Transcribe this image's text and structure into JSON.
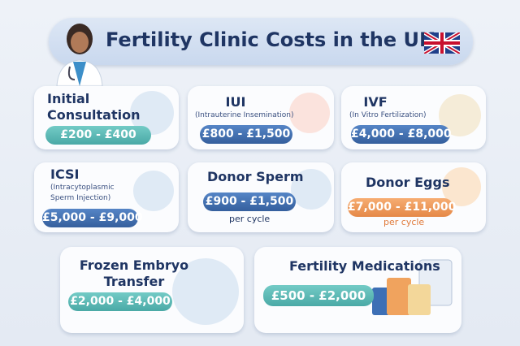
{
  "header": {
    "title": "Fertility Clinic Costs in the UK"
  },
  "cards": [
    {
      "title": "Initial Consultation",
      "price": "£200 - £400"
    },
    {
      "title": "IUI",
      "subtitle": "(Intrauterine Insemination)",
      "price": "£800 - £1,500"
    },
    {
      "title": "IVF",
      "subtitle": "(In Vitro Fertilization)",
      "price": "£4,000 - £8,000"
    },
    {
      "title": "ICSI",
      "subtitle": "(Intracytoplasmic Sperm Injection)",
      "price": "£5,000 - £9,000"
    },
    {
      "title": "Donor Sperm",
      "price": "£900 - £1,500",
      "note": "per cycle"
    },
    {
      "title": "Donor Eggs",
      "price": "£7,000 - £11,000",
      "note": "per cycle"
    },
    {
      "title": "Frozen Embryo Transfer",
      "price": "£2,000 - £4,000"
    },
    {
      "title": "Fertility Medications",
      "price": "£500 - £2,000"
    }
  ]
}
